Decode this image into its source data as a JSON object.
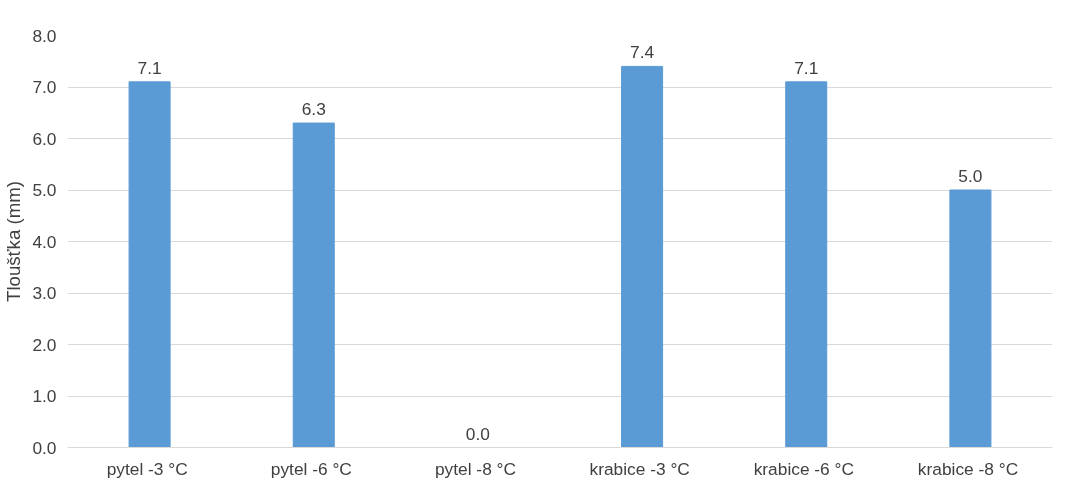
{
  "chart_data": {
    "type": "bar",
    "ylabel": "Tloušťka (mm)",
    "categories": [
      "pytel -3  °C",
      "pytel -6  °C",
      "pytel -8  °C",
      "krabice -3  °C",
      "krabice -6  °C",
      "krabice -8  °C"
    ],
    "values": [
      7.1,
      6.3,
      0.0,
      7.4,
      7.1,
      5.0
    ],
    "color": "#5b9bd5",
    "ylim": [
      0,
      8
    ],
    "yticks": [
      {
        "value": 0,
        "label": "0.0"
      },
      {
        "value": 1,
        "label": "1.0"
      },
      {
        "value": 2,
        "label": "2.0"
      },
      {
        "value": 3,
        "label": "3.0"
      },
      {
        "value": 4,
        "label": "4.0"
      },
      {
        "value": 5,
        "label": "5.0"
      },
      {
        "value": 6,
        "label": "6.0"
      },
      {
        "value": 7,
        "label": "7.0"
      },
      {
        "value": 8,
        "label": "8.0"
      }
    ],
    "value_labels": [
      "7.1",
      "6.3",
      "0.0",
      "7.4",
      "7.1",
      "5.0"
    ],
    "grid": "y"
  }
}
